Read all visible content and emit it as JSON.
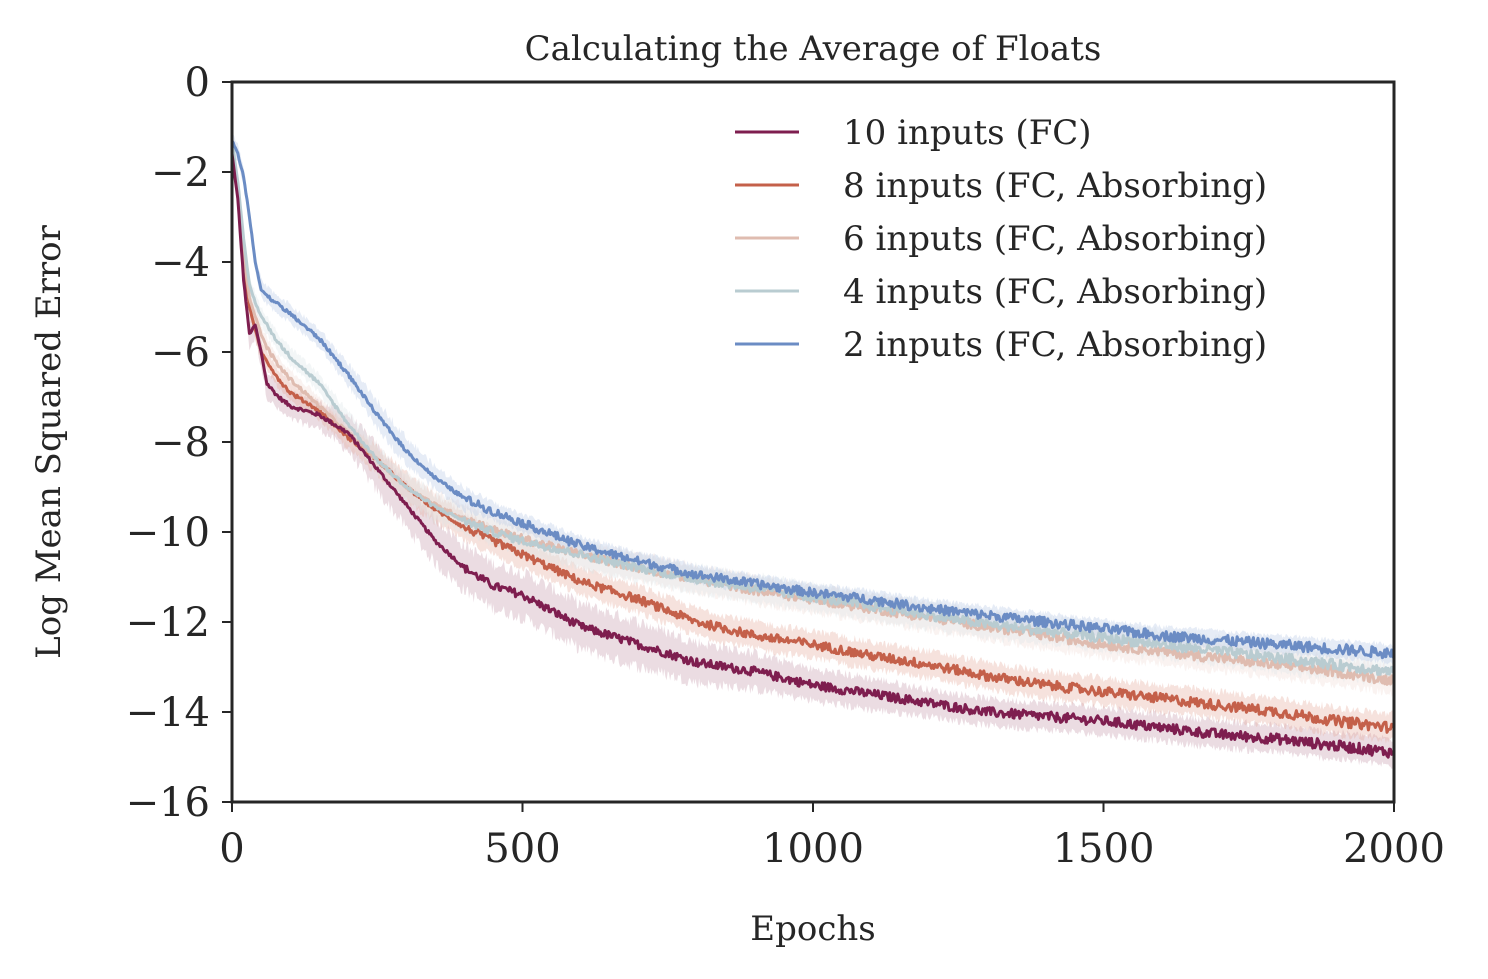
{
  "chart_data": {
    "type": "line",
    "title": "Calculating the Average of Floats",
    "xlabel": "Epochs",
    "ylabel": "Log Mean Squared Error",
    "xlim": [
      0,
      2000
    ],
    "ylim": [
      -16,
      0
    ],
    "xticks": [
      0,
      500,
      1000,
      1500,
      2000
    ],
    "xtick_labels": [
      "0",
      "500",
      "1000",
      "1500",
      "2000"
    ],
    "yticks": [
      0,
      -2,
      -4,
      -6,
      -8,
      -10,
      -12,
      -14,
      -16
    ],
    "ytick_labels": [
      "0",
      "−2",
      "−4",
      "−6",
      "−8",
      "−10",
      "−12",
      "−14",
      "−16"
    ],
    "grid": false,
    "legend_position": "top-right",
    "series": [
      {
        "name": "10 inputs (FC)",
        "color": "#7e1e4f",
        "band_color": "#c79aad",
        "x": [
          0,
          10,
          20,
          30,
          40,
          50,
          60,
          80,
          100,
          150,
          200,
          250,
          300,
          350,
          400,
          450,
          500,
          600,
          700,
          800,
          900,
          1000,
          1100,
          1200,
          1300,
          1400,
          1500,
          1600,
          1700,
          1800,
          1900,
          2000
        ],
        "y": [
          -1.6,
          -2.6,
          -4.4,
          -5.6,
          -5.4,
          -6.0,
          -6.7,
          -7.0,
          -7.2,
          -7.4,
          -7.8,
          -8.6,
          -9.4,
          -10.2,
          -10.8,
          -11.2,
          -11.4,
          -12.1,
          -12.5,
          -12.9,
          -13.1,
          -13.4,
          -13.6,
          -13.8,
          -14.0,
          -14.1,
          -14.2,
          -14.35,
          -14.5,
          -14.6,
          -14.75,
          -14.9
        ],
        "band": [
          0.2,
          0.3,
          0.3,
          0.3,
          0.3,
          0.3,
          0.3,
          0.3,
          0.3,
          0.3,
          0.4,
          0.5,
          0.5,
          0.5,
          0.5,
          0.5,
          0.5,
          0.5,
          0.5,
          0.45,
          0.4,
          0.35,
          0.35,
          0.3,
          0.3,
          0.3,
          0.3,
          0.3,
          0.3,
          0.3,
          0.3,
          0.3
        ]
      },
      {
        "name": "8 inputs (FC, Absorbing)",
        "color": "#c4604a",
        "band_color": "#e6ad9f",
        "x": [
          0,
          10,
          20,
          30,
          40,
          50,
          60,
          80,
          100,
          150,
          200,
          250,
          300,
          350,
          400,
          450,
          500,
          600,
          700,
          800,
          900,
          1000,
          1100,
          1200,
          1300,
          1400,
          1500,
          1600,
          1700,
          1800,
          1900,
          2000
        ],
        "y": [
          -1.5,
          -2.5,
          -4.0,
          -5.0,
          -5.5,
          -6.0,
          -6.2,
          -6.6,
          -6.9,
          -7.3,
          -7.9,
          -8.4,
          -9.0,
          -9.5,
          -9.9,
          -10.2,
          -10.5,
          -11.1,
          -11.5,
          -12.0,
          -12.3,
          -12.5,
          -12.75,
          -12.95,
          -13.2,
          -13.4,
          -13.55,
          -13.7,
          -13.85,
          -14.0,
          -14.2,
          -14.35
        ],
        "band": [
          0.2,
          0.2,
          0.2,
          0.2,
          0.2,
          0.2,
          0.2,
          0.2,
          0.2,
          0.2,
          0.25,
          0.3,
          0.3,
          0.3,
          0.3,
          0.3,
          0.3,
          0.3,
          0.3,
          0.3,
          0.3,
          0.3,
          0.3,
          0.3,
          0.3,
          0.3,
          0.3,
          0.3,
          0.3,
          0.3,
          0.3,
          0.3
        ]
      },
      {
        "name": "6 inputs (FC, Absorbing)",
        "color": "#dfbcb0",
        "band_color": "#f0ddd6",
        "x": [
          0,
          10,
          20,
          30,
          40,
          50,
          60,
          80,
          100,
          150,
          200,
          250,
          300,
          350,
          400,
          450,
          500,
          600,
          700,
          800,
          900,
          1000,
          1100,
          1200,
          1300,
          1400,
          1500,
          1600,
          1700,
          1800,
          1900,
          2000
        ],
        "y": [
          -1.4,
          -2.4,
          -3.8,
          -4.8,
          -5.2,
          -5.6,
          -5.9,
          -6.3,
          -6.6,
          -7.2,
          -7.8,
          -8.4,
          -9.0,
          -9.4,
          -9.7,
          -9.95,
          -10.15,
          -10.5,
          -10.8,
          -11.05,
          -11.3,
          -11.5,
          -11.7,
          -11.9,
          -12.1,
          -12.3,
          -12.5,
          -12.65,
          -12.8,
          -12.95,
          -13.1,
          -13.3
        ],
        "band": [
          0.2,
          0.2,
          0.2,
          0.2,
          0.2,
          0.2,
          0.2,
          0.2,
          0.2,
          0.2,
          0.25,
          0.3,
          0.3,
          0.3,
          0.3,
          0.3,
          0.3,
          0.3,
          0.3,
          0.3,
          0.3,
          0.3,
          0.3,
          0.3,
          0.3,
          0.3,
          0.3,
          0.3,
          0.3,
          0.3,
          0.3,
          0.3
        ]
      },
      {
        "name": "4 inputs (FC, Absorbing)",
        "color": "#b9ccd1",
        "band_color": "#dce6e9",
        "x": [
          0,
          10,
          20,
          30,
          40,
          50,
          60,
          80,
          100,
          150,
          200,
          250,
          300,
          350,
          400,
          450,
          500,
          600,
          700,
          800,
          900,
          1000,
          1100,
          1200,
          1300,
          1400,
          1500,
          1600,
          1700,
          1800,
          1900,
          2000
        ],
        "y": [
          -1.3,
          -2.2,
          -3.5,
          -4.5,
          -4.9,
          -5.2,
          -5.4,
          -5.8,
          -6.1,
          -6.7,
          -7.6,
          -8.4,
          -9.0,
          -9.45,
          -9.75,
          -10.0,
          -10.2,
          -10.5,
          -10.8,
          -11.05,
          -11.25,
          -11.45,
          -11.65,
          -11.85,
          -12.05,
          -12.2,
          -12.35,
          -12.5,
          -12.65,
          -12.8,
          -12.95,
          -13.1
        ],
        "band": [
          0.2,
          0.2,
          0.2,
          0.2,
          0.2,
          0.2,
          0.2,
          0.2,
          0.2,
          0.2,
          0.25,
          0.3,
          0.3,
          0.3,
          0.3,
          0.3,
          0.3,
          0.3,
          0.3,
          0.3,
          0.3,
          0.3,
          0.3,
          0.3,
          0.3,
          0.3,
          0.3,
          0.3,
          0.3,
          0.3,
          0.3,
          0.3
        ]
      },
      {
        "name": "2 inputs (FC, Absorbing)",
        "color": "#6b8cc4",
        "band_color": "#b8c8e4",
        "x": [
          0,
          10,
          20,
          30,
          40,
          50,
          60,
          80,
          100,
          150,
          200,
          250,
          300,
          350,
          400,
          450,
          500,
          600,
          700,
          800,
          900,
          1000,
          1100,
          1200,
          1300,
          1400,
          1500,
          1600,
          1700,
          1800,
          1900,
          2000
        ],
        "y": [
          -1.3,
          -1.6,
          -2.1,
          -3.0,
          -4.0,
          -4.6,
          -4.75,
          -4.95,
          -5.15,
          -5.7,
          -6.5,
          -7.4,
          -8.2,
          -8.8,
          -9.25,
          -9.55,
          -9.8,
          -10.3,
          -10.65,
          -10.95,
          -11.15,
          -11.35,
          -11.5,
          -11.7,
          -11.85,
          -12.0,
          -12.15,
          -12.3,
          -12.4,
          -12.5,
          -12.6,
          -12.7
        ],
        "band": [
          0.2,
          0.2,
          0.2,
          0.2,
          0.2,
          0.2,
          0.2,
          0.2,
          0.2,
          0.2,
          0.25,
          0.3,
          0.3,
          0.25,
          0.25,
          0.2,
          0.2,
          0.2,
          0.2,
          0.2,
          0.2,
          0.2,
          0.2,
          0.2,
          0.2,
          0.2,
          0.2,
          0.2,
          0.2,
          0.2,
          0.2,
          0.2
        ]
      }
    ]
  }
}
